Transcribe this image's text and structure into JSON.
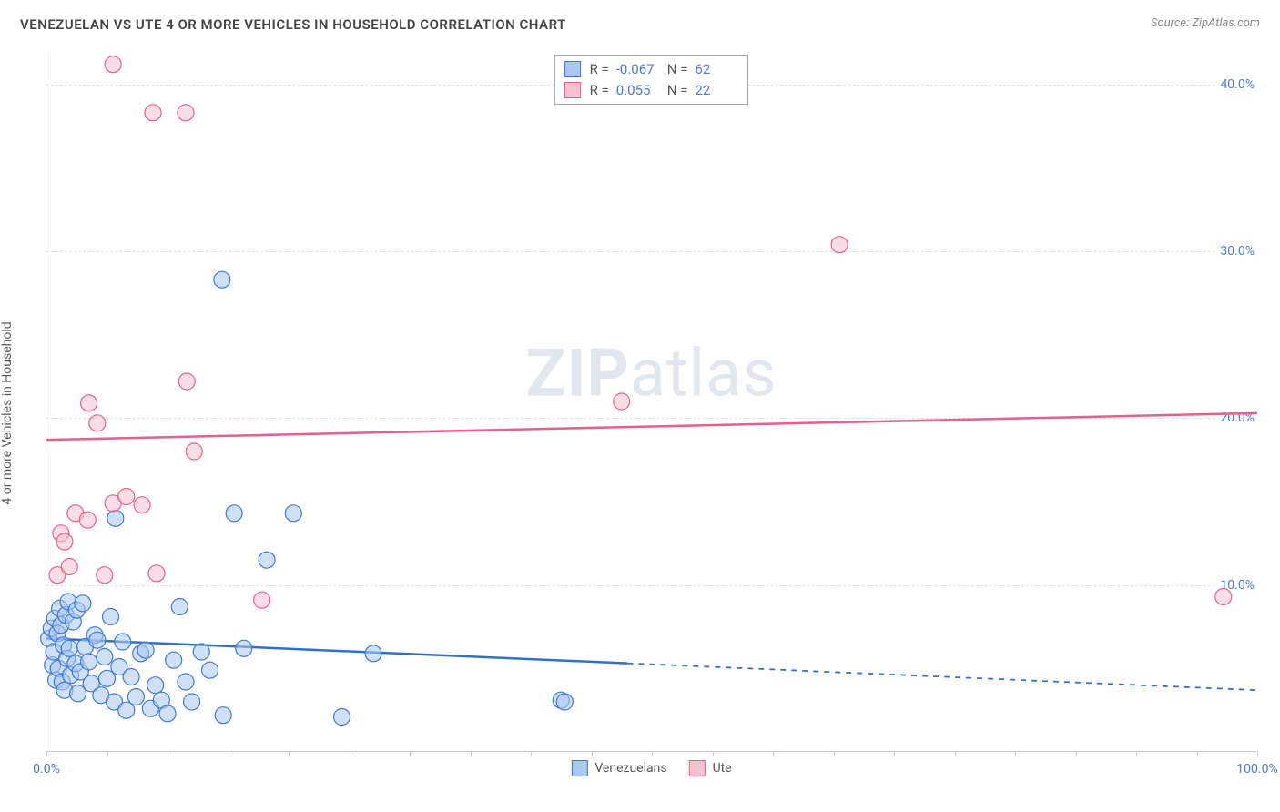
{
  "title": "VENEZUELAN VS UTE 4 OR MORE VEHICLES IN HOUSEHOLD CORRELATION CHART",
  "source_label": "Source: ZipAtlas.com",
  "watermark": {
    "bold": "ZIP",
    "rest": "atlas"
  },
  "ylabel": "4 or more Vehicles in Household",
  "chart": {
    "type": "scatter",
    "background_color": "#ffffff",
    "grid_color": "#dddddd",
    "axis_color": "#cccccc",
    "tick_label_color": "#4a7bd0",
    "xlim": [
      0,
      100
    ],
    "ylim": [
      0,
      42
    ],
    "xtick_positions": [
      0,
      5,
      10,
      15,
      20,
      25,
      30,
      35,
      40,
      45,
      50,
      55,
      60,
      65,
      70,
      75,
      80,
      85,
      90,
      95,
      100
    ],
    "xtick_labels": {
      "0": "0.0%",
      "100": "100.0%"
    },
    "ytick_positions": [
      10,
      20,
      30,
      40
    ],
    "ytick_labels": {
      "10": "10.0%",
      "20": "20.0%",
      "30": "30.0%",
      "40": "40.0%"
    },
    "marker_radius": 9,
    "marker_opacity": 0.55,
    "marker_stroke_width": 1.2,
    "line_width": 2.5,
    "series": [
      {
        "name": "Venezuelans",
        "color_fill": "#a9c8f0",
        "color_stroke": "#3f79d6",
        "line_color": "#2f6fd0",
        "R": "-0.067",
        "N": "62",
        "trend": {
          "x1": 0,
          "y1": 6.8,
          "x2": 100,
          "y2": 3.7,
          "solid_until_x": 48
        },
        "points": [
          [
            0.2,
            6.8
          ],
          [
            0.4,
            7.4
          ],
          [
            0.5,
            5.2
          ],
          [
            0.6,
            6.0
          ],
          [
            0.7,
            8.0
          ],
          [
            0.8,
            4.3
          ],
          [
            0.9,
            7.1
          ],
          [
            1.0,
            5.0
          ],
          [
            1.1,
            8.6
          ],
          [
            1.2,
            7.6
          ],
          [
            1.3,
            4.2
          ],
          [
            1.4,
            6.4
          ],
          [
            1.5,
            3.7
          ],
          [
            1.6,
            8.2
          ],
          [
            1.7,
            5.6
          ],
          [
            1.8,
            9.0
          ],
          [
            1.9,
            6.2
          ],
          [
            2.0,
            4.6
          ],
          [
            2.2,
            7.8
          ],
          [
            2.4,
            5.3
          ],
          [
            2.5,
            8.5
          ],
          [
            2.6,
            3.5
          ],
          [
            2.8,
            4.8
          ],
          [
            3.0,
            8.9
          ],
          [
            3.2,
            6.3
          ],
          [
            3.5,
            5.4
          ],
          [
            3.7,
            4.1
          ],
          [
            4.0,
            7.0
          ],
          [
            4.2,
            6.7
          ],
          [
            4.5,
            3.4
          ],
          [
            4.8,
            5.7
          ],
          [
            5.0,
            4.4
          ],
          [
            5.3,
            8.1
          ],
          [
            5.6,
            3.0
          ],
          [
            6.0,
            5.1
          ],
          [
            6.3,
            6.6
          ],
          [
            6.6,
            2.5
          ],
          [
            7.0,
            4.5
          ],
          [
            7.4,
            3.3
          ],
          [
            7.8,
            5.9
          ],
          [
            8.2,
            6.1
          ],
          [
            8.6,
            2.6
          ],
          [
            9.0,
            4.0
          ],
          [
            9.5,
            3.1
          ],
          [
            10.0,
            2.3
          ],
          [
            10.5,
            5.5
          ],
          [
            11.0,
            8.7
          ],
          [
            11.5,
            4.2
          ],
          [
            12.0,
            3.0
          ],
          [
            12.8,
            6.0
          ],
          [
            13.5,
            4.9
          ],
          [
            14.6,
            2.2
          ],
          [
            15.5,
            14.3
          ],
          [
            16.3,
            6.2
          ],
          [
            18.2,
            11.5
          ],
          [
            20.4,
            14.3
          ],
          [
            24.4,
            2.1
          ],
          [
            27.0,
            5.9
          ],
          [
            42.5,
            3.1
          ],
          [
            42.8,
            3.0
          ],
          [
            14.5,
            28.3
          ],
          [
            5.7,
            14.0
          ]
        ]
      },
      {
        "name": "Ute",
        "color_fill": "#f6c2cf",
        "color_stroke": "#e85f8a",
        "line_color": "#e85f8a",
        "R": "0.055",
        "N": "22",
        "trend": {
          "x1": 0,
          "y1": 18.7,
          "x2": 100,
          "y2": 20.3,
          "solid_until_x": 100
        },
        "points": [
          [
            0.9,
            10.6
          ],
          [
            1.2,
            13.1
          ],
          [
            1.5,
            12.6
          ],
          [
            1.9,
            11.1
          ],
          [
            2.4,
            14.3
          ],
          [
            3.4,
            13.9
          ],
          [
            3.5,
            20.9
          ],
          [
            4.2,
            19.7
          ],
          [
            5.5,
            14.9
          ],
          [
            5.5,
            41.2
          ],
          [
            6.6,
            15.3
          ],
          [
            7.9,
            14.8
          ],
          [
            8.8,
            38.3
          ],
          [
            9.1,
            10.7
          ],
          [
            11.5,
            38.3
          ],
          [
            11.6,
            22.2
          ],
          [
            12.2,
            18.0
          ],
          [
            17.8,
            9.1
          ],
          [
            47.5,
            21.0
          ],
          [
            65.5,
            30.4
          ],
          [
            97.2,
            9.3
          ],
          [
            4.8,
            10.6
          ]
        ]
      }
    ],
    "stats_legend": {
      "r_label": "R =",
      "n_label": "N ="
    }
  }
}
